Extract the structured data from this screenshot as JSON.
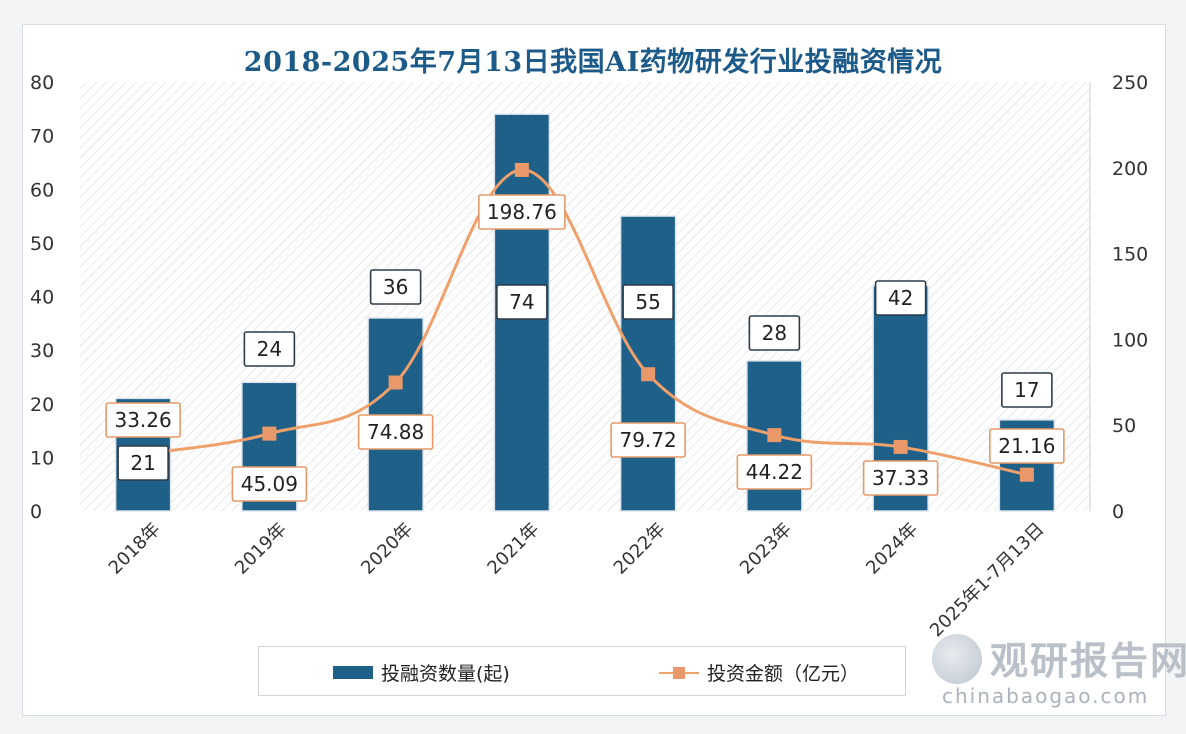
{
  "chart_data": {
    "type": "bar",
    "title": "2018-2025年7月13日我国AI药物研发行业投融资情况",
    "categories": [
      "2018年",
      "2019年",
      "2020年",
      "2021年",
      "2022年",
      "2023年",
      "2024年",
      "2025年1-7月13日"
    ],
    "series": [
      {
        "name": "投融资数量(起)",
        "type": "bar",
        "axis": "left",
        "color": "#1e6088",
        "values": [
          21,
          24,
          36,
          74,
          55,
          28,
          42,
          17
        ]
      },
      {
        "name": "投资金额（亿元）",
        "type": "line",
        "axis": "right",
        "color": "#f0a06a",
        "values": [
          33.26,
          45.09,
          74.88,
          198.76,
          79.72,
          44.22,
          37.33,
          21.16
        ]
      }
    ],
    "left_axis": {
      "min": 0,
      "max": 80,
      "ticks": [
        "0",
        "10",
        "20",
        "30",
        "40",
        "50",
        "60",
        "70",
        "80"
      ]
    },
    "right_axis": {
      "min": 0,
      "max": 250,
      "ticks": [
        "0",
        "50",
        "100",
        "150",
        "200",
        "250"
      ]
    },
    "bar_labels": [
      "21",
      "24",
      "36",
      "74",
      "55",
      "28",
      "42",
      "17"
    ],
    "line_labels": [
      "33.26",
      "45.09",
      "74.88",
      "198.76",
      "79.72",
      "44.22",
      "37.33",
      "21.16"
    ],
    "legend_position": "bottom",
    "grid": false
  },
  "watermark": {
    "name": "观研报告网",
    "domain": "chinabaogao.com"
  }
}
